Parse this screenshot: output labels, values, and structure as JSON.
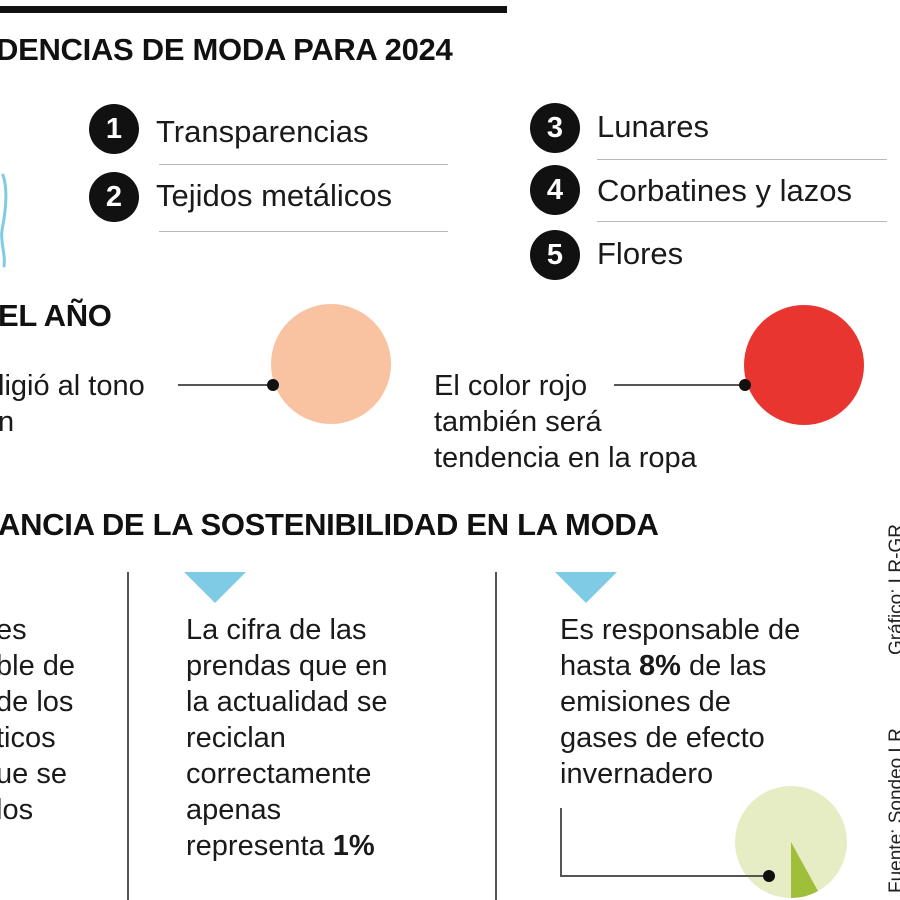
{
  "colors": {
    "peach": "#f9c3a2",
    "red": "#e83530",
    "triangle": "#7fcbe6",
    "pale_green": "#e6edc4",
    "green": "#9fbf3a"
  },
  "section1": {
    "title": "DENCIAS DE MODA PARA 2024",
    "items": [
      {
        "number": "1",
        "label": "Transparencias"
      },
      {
        "number": "2",
        "label": "Tejidos metálicos"
      },
      {
        "number": "3",
        "label": "Lunares"
      },
      {
        "number": "4",
        "label": "Corbatines y lazos"
      },
      {
        "number": "5",
        "label": "Flores"
      }
    ]
  },
  "section2": {
    "title": "EL AÑO",
    "left_text": {
      "line1": "ligió al tono",
      "line2": "n"
    },
    "right_text": {
      "line1": "El color rojo",
      "line2": "también será",
      "line3": "tendencia en la ropa"
    }
  },
  "section3": {
    "title": "ANCIA DE LA SOSTENIBILIDAD EN LA MODA",
    "col1_lines": [
      "es",
      "ble de",
      "de los",
      "ticos",
      "ue se",
      "los"
    ],
    "col2_lines": [
      "La cifra de las",
      "prendas que en",
      "la actualidad se",
      "reciclan",
      "correctamente",
      "apenas",
      "representa"
    ],
    "col2_highlight": "1%",
    "col3": {
      "line1": "Es responsable de",
      "line2_pre": "hasta",
      "line2_highlight": "8%",
      "line2_post": "de las",
      "line3": "emisiones de",
      "line4": "gases de efecto",
      "line5": "invernadero",
      "share": 0.08
    }
  },
  "credits": {
    "source": "Fuente: Sondeo LR",
    "graphic": "Gráfico: LR-GR"
  }
}
